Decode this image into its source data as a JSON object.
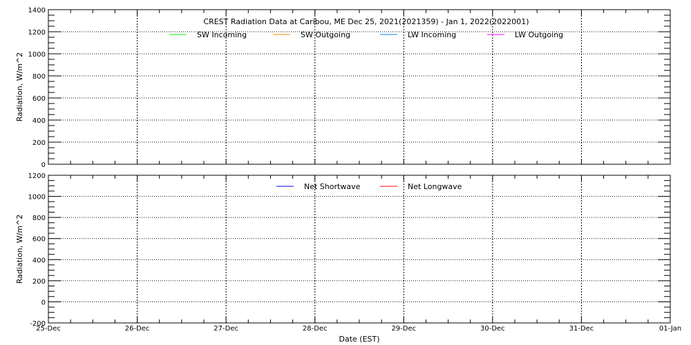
{
  "chart_data": [
    {
      "type": "line",
      "title": "CREST Radiation Data at Caribou, ME   Dec 25, 2021(2021359) - Jan  1, 2022(2022001)",
      "ylabel": "Radiation, W/m^2",
      "xlabel": "",
      "ylim": [
        0,
        1400
      ],
      "yticks": [
        0,
        200,
        400,
        600,
        800,
        1000,
        1200,
        1400
      ],
      "x_range": [
        "2021-12-25",
        "2022-01-01"
      ],
      "grid": true,
      "legend_placement": "top-center",
      "series": [
        {
          "name": "SW Incoming",
          "color": "#00ff00",
          "values": []
        },
        {
          "name": "SW Outgoing",
          "color": "#ff7f00",
          "values": []
        },
        {
          "name": "LW Incoming",
          "color": "#0080ff",
          "values": []
        },
        {
          "name": "LW Outgoing",
          "color": "#ff00ff",
          "values": []
        }
      ]
    },
    {
      "type": "line",
      "title": "",
      "ylabel": "Radiation, W/m^2",
      "xlabel": "Date (EST)",
      "ylim": [
        -200,
        1200
      ],
      "yticks": [
        -200,
        0,
        200,
        400,
        600,
        800,
        1000,
        1200
      ],
      "x_range": [
        "2021-12-25",
        "2022-01-01"
      ],
      "xtick_labels": [
        "25-Dec",
        "26-Dec",
        "27-Dec",
        "28-Dec",
        "29-Dec",
        "30-Dec",
        "31-Dec",
        "01-Jan"
      ],
      "grid": true,
      "legend_placement": "top-center",
      "series": [
        {
          "name": "Net Shortwave",
          "color": "#0000ff",
          "values": []
        },
        {
          "name": "Net Longwave",
          "color": "#ff0000",
          "values": []
        }
      ]
    }
  ]
}
